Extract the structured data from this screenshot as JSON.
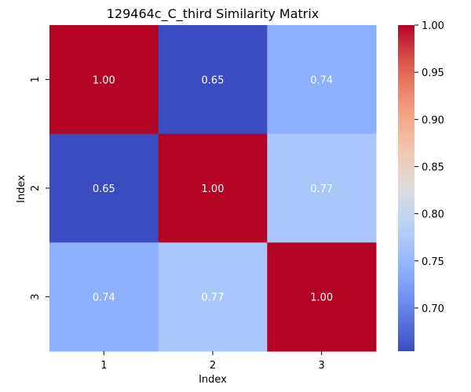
{
  "chart_data": {
    "type": "heatmap",
    "title": "129464c_C_third Similarity Matrix",
    "xlabel": "Index",
    "ylabel": "Index",
    "x_categories": [
      "1",
      "2",
      "3"
    ],
    "y_categories": [
      "1",
      "2",
      "3"
    ],
    "values": [
      [
        1.0,
        0.65,
        0.74
      ],
      [
        0.65,
        1.0,
        0.77
      ],
      [
        0.74,
        0.77,
        1.0
      ]
    ],
    "value_format": "0.00",
    "colormap": "coolwarm",
    "color_range": [
      0.6542,
      1.0
    ],
    "colorbar_ticks": [
      "0.70",
      "0.75",
      "0.80",
      "0.85",
      "0.90",
      "0.95",
      "1.00"
    ],
    "annotation_color": "#ffffff",
    "grid": false
  }
}
